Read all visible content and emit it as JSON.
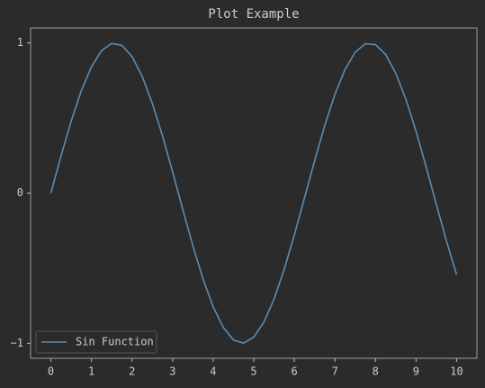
{
  "chart_data": {
    "type": "line",
    "title": "Plot Example",
    "x": [
      0,
      0.25,
      0.5,
      0.75,
      1,
      1.25,
      1.5,
      1.75,
      2,
      2.25,
      2.5,
      2.75,
      3,
      3.25,
      3.5,
      3.75,
      4,
      4.25,
      4.5,
      4.75,
      5,
      5.25,
      5.5,
      5.75,
      6,
      6.25,
      6.5,
      6.75,
      7,
      7.25,
      7.5,
      7.75,
      8,
      8.25,
      8.5,
      8.75,
      9,
      9.25,
      9.5,
      9.75,
      10
    ],
    "series": [
      {
        "name": "Sin Function",
        "color": "#5b8db3",
        "values": [
          0,
          0.247,
          0.479,
          0.682,
          0.841,
          0.949,
          0.997,
          0.984,
          0.909,
          0.778,
          0.598,
          0.382,
          0.141,
          -0.108,
          -0.351,
          -0.572,
          -0.757,
          -0.895,
          -0.978,
          -0.999,
          -0.959,
          -0.859,
          -0.706,
          -0.508,
          -0.279,
          -0.033,
          0.215,
          0.451,
          0.657,
          0.823,
          0.938,
          0.995,
          0.989,
          0.923,
          0.798,
          0.625,
          0.412,
          0.174,
          -0.075,
          -0.319,
          -0.544
        ]
      }
    ],
    "xlim": [
      -0.5,
      10.5
    ],
    "xticks": [
      0,
      1,
      2,
      3,
      4,
      5,
      6,
      7,
      8,
      9,
      10
    ],
    "ylim": [
      -1.1,
      1.1
    ],
    "yticks": [
      {
        "value": -1,
        "label": "−1"
      },
      0,
      1
    ],
    "grid": false,
    "legend": "lower left"
  }
}
